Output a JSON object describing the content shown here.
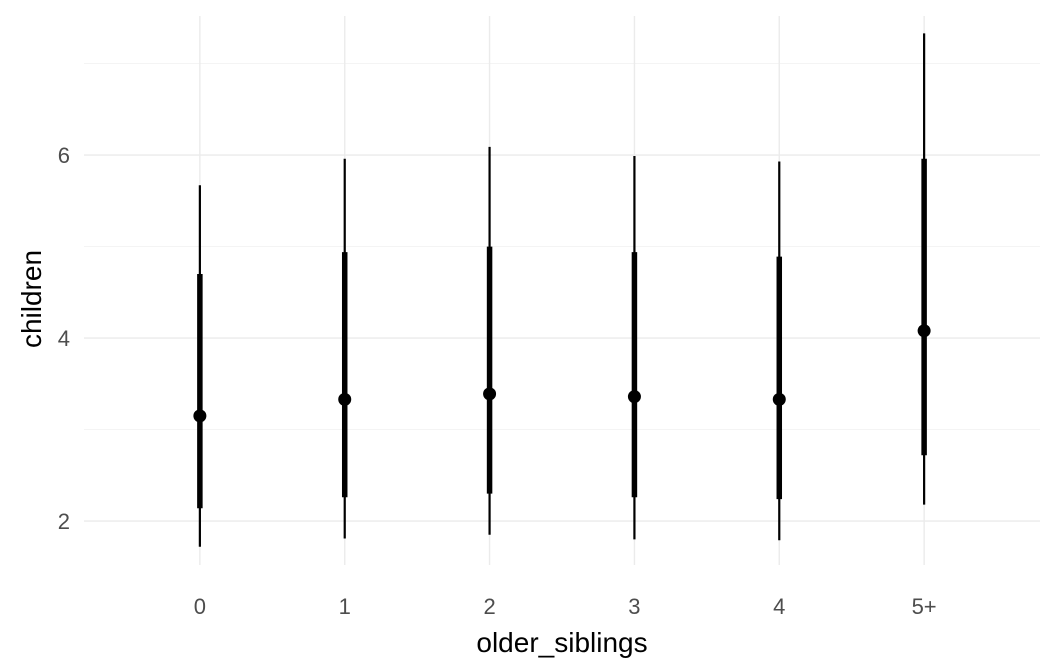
{
  "chart_data": {
    "type": "pointinterval",
    "xlabel": "older_siblings",
    "ylabel": "children",
    "categories": [
      "0",
      "1",
      "2",
      "3",
      "4",
      "5+"
    ],
    "y_ticks": [
      2,
      4,
      6
    ],
    "ylim": [
      1.52,
      7.52
    ],
    "grid": true,
    "legend": "none",
    "series": [
      {
        "point": [
          3.15,
          3.33,
          3.39,
          3.36,
          3.33,
          4.08
        ],
        "inner_interval": [
          [
            2.14,
            4.7
          ],
          [
            2.26,
            4.94
          ],
          [
            2.3,
            5.0
          ],
          [
            2.26,
            4.94
          ],
          [
            2.24,
            4.89
          ],
          [
            2.72,
            5.96
          ]
        ],
        "outer_interval": [
          [
            1.72,
            5.67
          ],
          [
            1.81,
            5.96
          ],
          [
            1.85,
            6.09
          ],
          [
            1.8,
            5.99
          ],
          [
            1.79,
            5.93
          ],
          [
            2.18,
            7.33
          ]
        ]
      }
    ],
    "colors": {
      "mark": "#000000",
      "grid_major": "#ebebeb",
      "grid_minor": "#f2f2f2",
      "tick_text": "#4d4d4d"
    }
  }
}
